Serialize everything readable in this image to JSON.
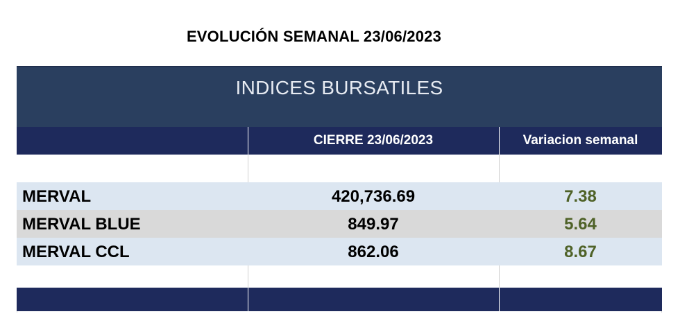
{
  "title": "EVOLUCIÓN SEMANAL 23/06/2023",
  "table": {
    "banner": "INDICES BURSATILES",
    "headers": {
      "close": "CIERRE 23/06/2023",
      "change": "Variacion semanal"
    },
    "rows": [
      {
        "name": "MERVAL",
        "close": "420,736.69",
        "change": "7.38",
        "bg": "#dce6f1"
      },
      {
        "name": "MERVAL BLUE",
        "close": "849.97",
        "change": "5.64",
        "bg": "#d9d9d9"
      },
      {
        "name": "MERVAL CCL",
        "close": "862.06",
        "change": "8.67",
        "bg": "#dce6f1"
      }
    ]
  },
  "colors": {
    "banner": "#2a3f5f",
    "header": "#1e2a5c",
    "change_text": "#4f6228"
  }
}
